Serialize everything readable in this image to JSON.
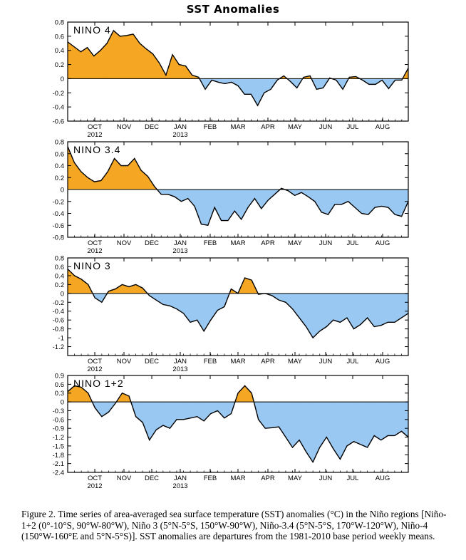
{
  "title": "SST Anomalies",
  "colors": {
    "positive": "#f5a623",
    "negative": "#99c8f2",
    "line": "#000000"
  },
  "x_axis": {
    "months": [
      "OCT",
      "NOV",
      "DEC",
      "JAN",
      "FEB",
      "MAR",
      "APR",
      "MAY",
      "JUN",
      "JUL",
      "AUG"
    ],
    "years": [
      "2012",
      "2013"
    ]
  },
  "chart_data": [
    {
      "type": "area",
      "label": "NINO 4",
      "ylim": [
        -0.6,
        0.8
      ],
      "yticks": [
        "0.8",
        "0.6",
        "0.4",
        "0.2",
        "0",
        "-0.2",
        "-0.4",
        "-0.6"
      ],
      "x_weeks": "weekly Sep 2012 - Aug 2013",
      "values": [
        0.52,
        0.45,
        0.38,
        0.44,
        0.32,
        0.4,
        0.5,
        0.68,
        0.6,
        0.61,
        0.63,
        0.5,
        0.42,
        0.35,
        0.22,
        0.05,
        0.34,
        0.2,
        0.18,
        0.05,
        0.02,
        -0.15,
        -0.02,
        -0.05,
        -0.07,
        -0.05,
        -0.1,
        -0.22,
        -0.22,
        -0.38,
        -0.2,
        -0.15,
        -0.02,
        0.04,
        -0.04,
        -0.13,
        0.02,
        0.04,
        -0.15,
        -0.13,
        0.01,
        -0.02,
        -0.15,
        0.02,
        0.03,
        -0.02,
        -0.08,
        -0.08,
        -0.02,
        -0.14,
        -0.02,
        -0.02,
        0.15
      ]
    },
    {
      "type": "area",
      "label": "NINO 3.4",
      "ylim": [
        -0.8,
        0.8
      ],
      "yticks": [
        "0.8",
        "0.6",
        "0.4",
        "0.2",
        "0",
        "-0.2",
        "-0.4",
        "-0.6",
        "-0.8"
      ],
      "values": [
        0.72,
        0.45,
        0.3,
        0.2,
        0.13,
        0.15,
        0.3,
        0.52,
        0.4,
        0.4,
        0.52,
        0.32,
        0.22,
        0.05,
        -0.08,
        -0.08,
        -0.12,
        -0.2,
        -0.15,
        -0.28,
        -0.58,
        -0.6,
        -0.3,
        -0.52,
        -0.52,
        -0.36,
        -0.5,
        -0.3,
        -0.15,
        -0.32,
        -0.18,
        -0.08,
        0.02,
        -0.02,
        -0.1,
        -0.05,
        -0.12,
        -0.2,
        -0.38,
        -0.42,
        -0.25,
        -0.25,
        -0.2,
        -0.3,
        -0.4,
        -0.42,
        -0.3,
        -0.28,
        -0.3,
        -0.42,
        -0.45,
        -0.2
      ]
    },
    {
      "type": "area",
      "label": "NINO 3",
      "ylim": [
        -1.4,
        0.8
      ],
      "yticks": [
        "0.8",
        "0.6",
        "0.4",
        "0.2",
        "0",
        "-0.2",
        "-0.4",
        "-0.6",
        "-0.8",
        "-1",
        "-1.2"
      ],
      "values": [
        0.55,
        0.4,
        0.32,
        0.2,
        -0.1,
        -0.2,
        0.05,
        0.1,
        0.2,
        0.15,
        0.2,
        0.12,
        -0.05,
        -0.15,
        -0.25,
        -0.28,
        -0.35,
        -0.45,
        -0.65,
        -0.6,
        -0.85,
        -0.6,
        -0.38,
        -0.3,
        0.1,
        0.0,
        0.35,
        0.3,
        -0.02,
        0.0,
        -0.05,
        -0.15,
        -0.2,
        -0.35,
        -0.55,
        -0.75,
        -1.0,
        -0.85,
        -0.75,
        -0.6,
        -0.65,
        -0.55,
        -0.8,
        -0.7,
        -0.55,
        -0.75,
        -0.72,
        -0.65,
        -0.65,
        -0.55,
        -0.45
      ]
    },
    {
      "type": "area",
      "label": "NINO 1+2",
      "ylim": [
        -2.4,
        0.9
      ],
      "yticks": [
        "0.9",
        "0.6",
        "0.3",
        "0",
        "-0.3",
        "-0.6",
        "-0.9",
        "-1.2",
        "-1.5",
        "-1.8",
        "-2.1",
        "-2.4"
      ],
      "values": [
        0.35,
        0.55,
        0.5,
        0.3,
        -0.2,
        -0.5,
        -0.35,
        -0.05,
        0.3,
        0.2,
        -0.5,
        -0.7,
        -1.3,
        -0.95,
        -0.8,
        -0.9,
        -0.6,
        -0.6,
        -0.55,
        -0.5,
        -0.65,
        -0.4,
        -0.3,
        -0.55,
        -0.4,
        0.3,
        0.55,
        0.3,
        -0.6,
        -0.9,
        -0.88,
        -0.85,
        -1.2,
        -1.55,
        -1.3,
        -1.7,
        -2.05,
        -1.55,
        -1.2,
        -1.6,
        -1.95,
        -1.5,
        -1.35,
        -1.45,
        -1.55,
        -1.15,
        -1.3,
        -1.15,
        -1.15,
        -1.0,
        -1.2
      ]
    }
  ],
  "caption": "Figure 2. Time series of area-averaged sea surface temperature (SST) anomalies (°C) in the Niño regions [Niño-1+2 (0°-10°S, 90°W-80°W), Niño 3 (5°N-5°S, 150°W-90°W), Niño-3.4 (5°N-5°S, 170°W-120°W), Niño-4 (150°W-160°E and 5°N-5°S)].  SST anomalies are departures from the 1981-2010 base period weekly means."
}
